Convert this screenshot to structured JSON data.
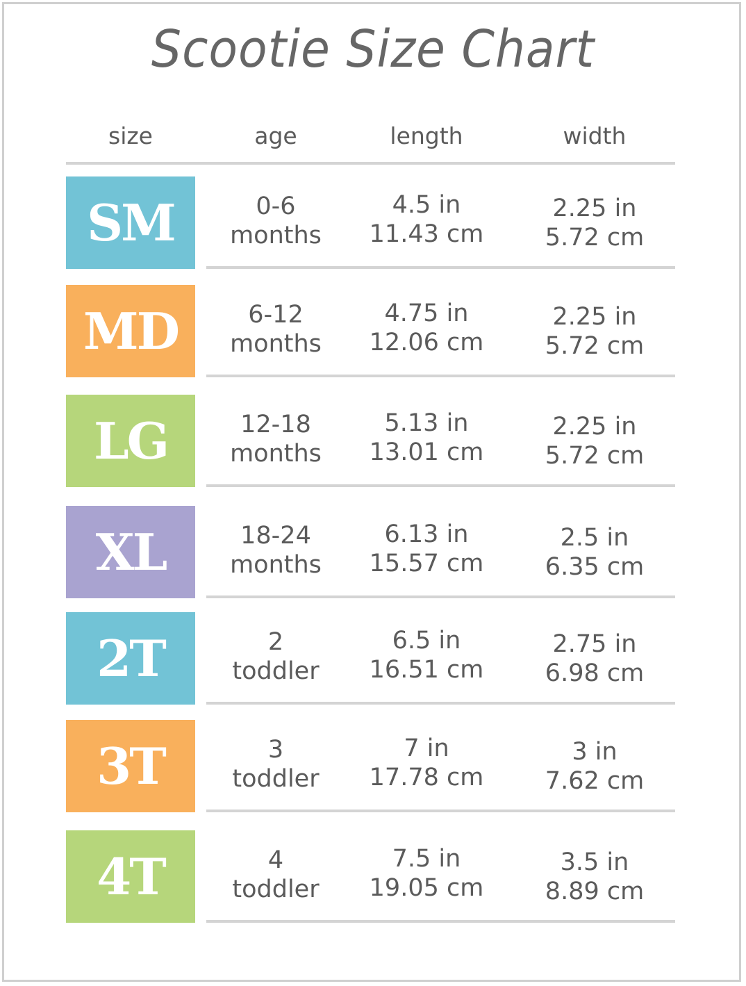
{
  "title": "Scootie Size Chart",
  "headers": [
    "size",
    "age",
    "length",
    "width"
  ],
  "colors": {
    "blue": "#72c3d6",
    "orange": "#f9b05c",
    "green": "#b6d67b",
    "purple": "#a9a3d0",
    "text": "#5b5b5b",
    "rule": "#d4d4d4"
  },
  "rows": [
    {
      "size": "SM",
      "color": "#72c3d6",
      "age": [
        "0-6",
        "months"
      ],
      "length": [
        "4.5 in",
        "11.43 cm"
      ],
      "width": [
        "2.25 in",
        "5.72 cm"
      ]
    },
    {
      "size": "MD",
      "color": "#f9b05c",
      "age": [
        "6-12",
        "months"
      ],
      "length": [
        "4.75 in",
        "12.06 cm"
      ],
      "width": [
        "2.25 in",
        "5.72 cm"
      ]
    },
    {
      "size": "LG",
      "color": "#b6d67b",
      "age": [
        "12-18",
        "months"
      ],
      "length": [
        "5.13 in",
        "13.01 cm"
      ],
      "width": [
        "2.25 in",
        "5.72 cm"
      ]
    },
    {
      "size": "XL",
      "color": "#a9a3d0",
      "age": [
        "18-24",
        "months"
      ],
      "length": [
        "6.13 in",
        "15.57 cm"
      ],
      "width": [
        "2.5 in",
        "6.35 cm"
      ]
    },
    {
      "size": "2T",
      "color": "#72c3d6",
      "age": [
        "2",
        "toddler"
      ],
      "length": [
        "6.5 in",
        "16.51 cm"
      ],
      "width": [
        "2.75 in",
        "6.98 cm"
      ]
    },
    {
      "size": "3T",
      "color": "#f9b05c",
      "age": [
        "3",
        "toddler"
      ],
      "length": [
        "7 in",
        "17.78 cm"
      ],
      "width": [
        "3 in",
        "7.62 cm"
      ]
    },
    {
      "size": "4T",
      "color": "#b6d67b",
      "age": [
        "4",
        "toddler"
      ],
      "length": [
        "7.5 in",
        "19.05 cm"
      ],
      "width": [
        "3.5 in",
        "8.89 cm"
      ]
    }
  ]
}
